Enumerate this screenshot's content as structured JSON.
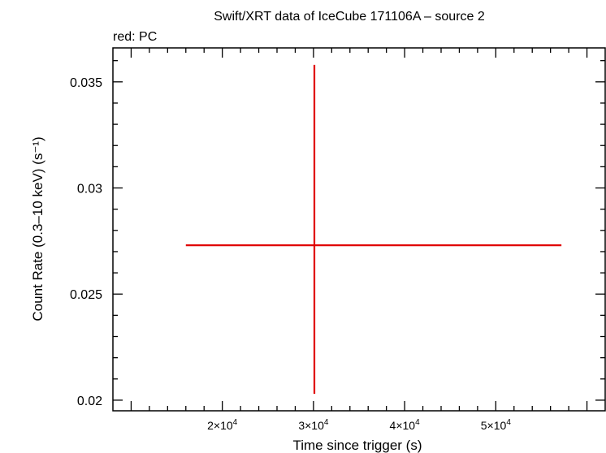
{
  "chart_data": {
    "type": "scatter",
    "title": "Swift/XRT data of IceCube 171106A – source 2",
    "subtitle": "red: PC",
    "xlabel": "Time since trigger (s)",
    "ylabel": "Count Rate (0.3–10 keV) (s⁻¹)",
    "xlim": [
      8000,
      62000
    ],
    "ylim": [
      0.0195,
      0.0366
    ],
    "x_ticks": [
      {
        "value": 20000,
        "mantissa": "2",
        "exp": "4"
      },
      {
        "value": 30000,
        "mantissa": "3",
        "exp": "4"
      },
      {
        "value": 40000,
        "mantissa": "4",
        "exp": "4"
      },
      {
        "value": 50000,
        "mantissa": "5",
        "exp": "4"
      }
    ],
    "y_ticks": [
      {
        "value": 0.02,
        "label": "0.02"
      },
      {
        "value": 0.025,
        "label": "0.025"
      },
      {
        "value": 0.03,
        "label": "0.03"
      },
      {
        "value": 0.035,
        "label": "0.035"
      }
    ],
    "series": [
      {
        "color": "#e00000",
        "points": [
          {
            "x": 30100,
            "y": 0.0273,
            "x_low": 16000,
            "x_high": 57200,
            "y_low": 0.0203,
            "y_high": 0.0358
          }
        ]
      }
    ],
    "grid": false,
    "legend": "none"
  }
}
